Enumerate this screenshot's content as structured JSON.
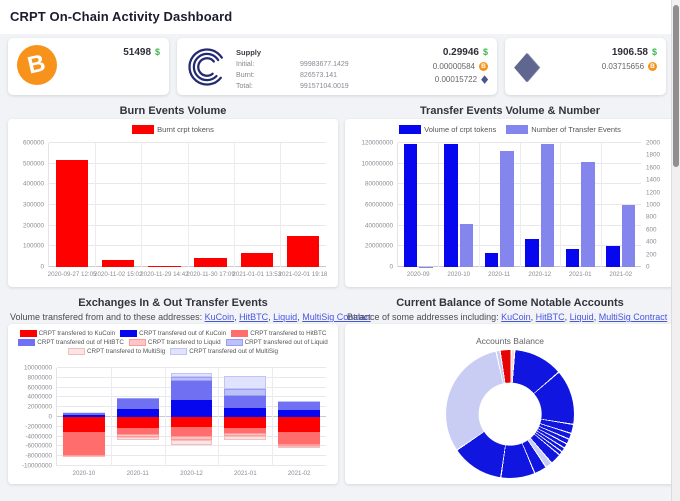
{
  "header": {
    "title": "CRPT On-Chain Activity Dashboard"
  },
  "icons": {
    "usd": "$",
    "btc_glyph": "B",
    "eth_glyph": "◆"
  },
  "summary_cards": {
    "btc": {
      "usd_value": "51498"
    },
    "crpt": {
      "supply_label": "Supply",
      "rows": [
        {
          "label": "Initial:",
          "value": "99983677.1429"
        },
        {
          "label": "Burnt:",
          "value": "826573.141"
        },
        {
          "label": "Total:",
          "value": "99157104.0019"
        }
      ],
      "usd_value": "0.29946",
      "btc_value": "0.00000584",
      "eth_value": "0.00015722"
    },
    "eth": {
      "usd_value": "1906.58",
      "btc_value": "0.03715656"
    }
  },
  "colors": {
    "red": "#ff0000",
    "blue": "#0606ef",
    "periwinkle": "#8486ee",
    "usd_green": "#3db54a",
    "btc_orange": "#f7931a",
    "link_blue": "#4757e0",
    "donut_blue": "#1115e0",
    "donut_lavender": "#c9cdf4"
  },
  "chart_data": [
    {
      "type": "bar",
      "title": "Burn Events Volume",
      "legend": [
        {
          "name": "Burnt crpt tokens",
          "color": "#ff0000"
        }
      ],
      "categories": [
        "2020-09-27 12:05",
        "2020-11-02 15:02",
        "2020-11-29 14:42",
        "2020-11-30 17:09",
        "2021-01-01 13:53",
        "2021-02-01 19:18"
      ],
      "values": [
        520000,
        32000,
        3000,
        45000,
        68000,
        150000
      ],
      "bar_color": "#ff0000",
      "xlabel": "",
      "ylabel": "",
      "ylim": [
        0,
        600000
      ],
      "yticks": [
        0,
        100000,
        200000,
        300000,
        400000,
        500000,
        600000
      ],
      "grid": true,
      "legend_position": "top"
    },
    {
      "type": "grouped_bar_dual",
      "title": "Transfer Events Volume & Number",
      "categories": [
        "2020-09",
        "2020-10",
        "2020-11",
        "2020-12",
        "2021-01",
        "2021-02"
      ],
      "series": [
        {
          "name": "Volume of crpt tokens",
          "color": "#0606ef",
          "axis": "left",
          "values": [
            119500000,
            119500000,
            13500000,
            27500000,
            17500000,
            20500000
          ]
        },
        {
          "name": "Number of Transfer Events",
          "color": "#8486ee",
          "axis": "right",
          "values": [
            5,
            700,
            1870,
            1990,
            1700,
            1005
          ]
        }
      ],
      "ylim_left": [
        0,
        120000000
      ],
      "yticks_left": [
        0,
        20000000,
        40000000,
        60000000,
        80000000,
        100000000,
        120000000
      ],
      "ylim_right": [
        0,
        2000
      ],
      "yticks_right": [
        0,
        200,
        400,
        600,
        800,
        1000,
        1200,
        1400,
        1600,
        1800,
        2000
      ],
      "grid": true,
      "legend_position": "top"
    },
    {
      "type": "stacked_bar",
      "title": "Exchanges In & Out Transfer Events",
      "subtitle_prefix": "Volume transfered from and to these addresses: ",
      "links": [
        "KuCoin",
        "HitBTC",
        "Liquid",
        "MultiSig Contract"
      ],
      "categories": [
        "2020-10",
        "2020-11",
        "2020-12",
        "2021-01",
        "2021-02"
      ],
      "series": [
        {
          "name": "CRPT transfered to KuCoin",
          "color": "#ff0000",
          "values": [
            -3000000,
            -2300000,
            -2000000,
            -2200000,
            -3100000
          ]
        },
        {
          "name": "CRPT transfered out of KuCoin",
          "color": "#0606ef",
          "values": [
            500000,
            1700000,
            3500000,
            1900000,
            1400000
          ]
        },
        {
          "name": "CRPT transfered to HitBTC",
          "color": "#ff6d6d",
          "values": [
            -4800000,
            -1200000,
            -1900000,
            -1000000,
            -2500000
          ]
        },
        {
          "name": "CRPT transfered out of HitBTC",
          "color": "#6f71f2",
          "values": [
            500000,
            2000000,
            3800000,
            2400000,
            1800000
          ]
        },
        {
          "name": "CRPT transfered to Liquid",
          "color": "#ffc6c6",
          "border": "#ff9a9a",
          "values": [
            -200000,
            -500000,
            -800000,
            -600000,
            -400000
          ]
        },
        {
          "name": "CRPT transfered out of Liquid",
          "color": "#bdc1f7",
          "border": "#989ef2",
          "values": [
            50000,
            100000,
            900000,
            1400000,
            100000
          ]
        },
        {
          "name": "CRPT transfered to MultiSig",
          "color": "#fce4e4",
          "border": "#f5bcbc",
          "values": [
            -200000,
            -600000,
            -1100000,
            -900000,
            -400000
          ]
        },
        {
          "name": "CRPT transfered out of MultiSig",
          "color": "#e0e3fb",
          "border": "#bfc5f7",
          "values": [
            50000,
            0,
            700000,
            2600000,
            0
          ]
        }
      ],
      "ylim": [
        -10000000,
        10000000
      ],
      "yticks": [
        -10000000,
        -8000000,
        -6000000,
        -4000000,
        -2000000,
        0,
        2000000,
        4000000,
        6000000,
        8000000,
        10000000
      ],
      "grid": true,
      "legend_position": "top"
    },
    {
      "type": "pie",
      "title": "Current Balance of Some Notable Accounts",
      "subtitle_prefix": "Balance of some addresses including: ",
      "links": [
        "KuCoin",
        "HitBTC",
        "Liquid",
        "MultiSig Contract"
      ],
      "inner_title": "Accounts Balance",
      "donut_hole": 0.49,
      "start_angle_deg": -9,
      "slices": [
        {
          "color": "#e60404",
          "value": 2.8
        },
        {
          "color": "#f6dada",
          "value": 0.9
        },
        {
          "color": "#1115e0",
          "value": 12.5
        },
        {
          "color": "#1115e0",
          "value": 13.9
        },
        {
          "color": "#1115e0",
          "value": 2.3
        },
        {
          "color": "#1115e0",
          "value": 1.5
        },
        {
          "color": "#1115e0",
          "value": 1.3
        },
        {
          "color": "#1115e0",
          "value": 1.2
        },
        {
          "color": "#1115e0",
          "value": 1.1
        },
        {
          "color": "#1115e0",
          "value": 1.0
        },
        {
          "color": "#1115e0",
          "value": 2.8
        },
        {
          "color": "#c9cdf4",
          "value": 1.7
        },
        {
          "color": "#1115e0",
          "value": 3.2
        },
        {
          "color": "#1115e0",
          "value": 8.6
        },
        {
          "color": "#1115e0",
          "value": 13.2
        },
        {
          "color": "#c9cdf4",
          "value": 31.0
        },
        {
          "color": "#c9cdf4",
          "value": 1.0
        }
      ]
    }
  ]
}
